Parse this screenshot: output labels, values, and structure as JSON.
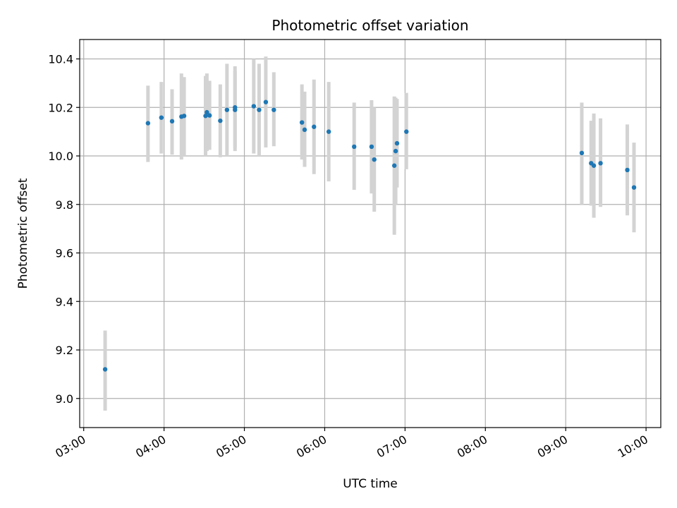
{
  "chart_data": {
    "type": "scatter",
    "title": "Photometric offset variation",
    "xlabel": "UTC time",
    "ylabel": "Photometric offset",
    "xlim": [
      "02:57",
      "10:11"
    ],
    "ylim": [
      8.88,
      10.48
    ],
    "xticks": [
      "03:00",
      "04:00",
      "05:00",
      "06:00",
      "07:00",
      "08:00",
      "09:00",
      "10:00"
    ],
    "yticks": [
      "9.0",
      "9.2",
      "9.4",
      "9.6",
      "9.8",
      "10.0",
      "10.2",
      "10.4"
    ],
    "grid": true,
    "colors": {
      "point": "#1f77b4",
      "errorbar": "#d3d3d3"
    },
    "points": [
      {
        "t": "03:16",
        "y": 9.12,
        "lo": 8.95,
        "hi": 9.28
      },
      {
        "t": "03:48",
        "y": 10.135,
        "lo": 9.975,
        "hi": 10.29
      },
      {
        "t": "03:58",
        "y": 10.158,
        "lo": 10.01,
        "hi": 10.305
      },
      {
        "t": "04:06",
        "y": 10.143,
        "lo": 10.005,
        "hi": 10.275
      },
      {
        "t": "04:13",
        "y": 10.162,
        "lo": 9.985,
        "hi": 10.34
      },
      {
        "t": "04:15",
        "y": 10.165,
        "lo": 10.0,
        "hi": 10.325
      },
      {
        "t": "04:31",
        "y": 10.165,
        "lo": 10.0,
        "hi": 10.33
      },
      {
        "t": "04:32",
        "y": 10.18,
        "lo": 10.02,
        "hi": 10.34
      },
      {
        "t": "04:34",
        "y": 10.167,
        "lo": 10.025,
        "hi": 10.31
      },
      {
        "t": "04:42",
        "y": 10.145,
        "lo": 9.995,
        "hi": 10.295
      },
      {
        "t": "04:47",
        "y": 10.19,
        "lo": 10.0,
        "hi": 10.38
      },
      {
        "t": "04:53",
        "y": 10.2,
        "lo": 10.02,
        "hi": 10.37
      },
      {
        "t": "04:53",
        "y": 10.19,
        "lo": 10.035,
        "hi": 10.35
      },
      {
        "t": "05:07",
        "y": 10.205,
        "lo": 10.01,
        "hi": 10.4
      },
      {
        "t": "05:11",
        "y": 10.19,
        "lo": 10.0,
        "hi": 10.38
      },
      {
        "t": "05:16",
        "y": 10.222,
        "lo": 10.035,
        "hi": 10.41
      },
      {
        "t": "05:22",
        "y": 10.19,
        "lo": 10.04,
        "hi": 10.345
      },
      {
        "t": "05:43",
        "y": 10.138,
        "lo": 9.985,
        "hi": 10.295
      },
      {
        "t": "05:45",
        "y": 10.108,
        "lo": 9.955,
        "hi": 10.265
      },
      {
        "t": "05:52",
        "y": 10.12,
        "lo": 9.925,
        "hi": 10.315
      },
      {
        "t": "06:03",
        "y": 10.1,
        "lo": 9.895,
        "hi": 10.305
      },
      {
        "t": "06:22",
        "y": 10.038,
        "lo": 9.86,
        "hi": 10.22
      },
      {
        "t": "06:35",
        "y": 10.038,
        "lo": 9.845,
        "hi": 10.23
      },
      {
        "t": "06:37",
        "y": 9.985,
        "lo": 9.77,
        "hi": 10.2
      },
      {
        "t": "06:52",
        "y": 9.96,
        "lo": 9.675,
        "hi": 10.245
      },
      {
        "t": "06:53",
        "y": 10.02,
        "lo": 9.8,
        "hi": 10.24
      },
      {
        "t": "06:54",
        "y": 10.052,
        "lo": 9.87,
        "hi": 10.235
      },
      {
        "t": "07:01",
        "y": 10.1,
        "lo": 9.945,
        "hi": 10.26
      },
      {
        "t": "09:12",
        "y": 10.012,
        "lo": 9.8,
        "hi": 10.22
      },
      {
        "t": "09:19",
        "y": 9.97,
        "lo": 9.795,
        "hi": 10.145
      },
      {
        "t": "09:21",
        "y": 9.96,
        "lo": 9.745,
        "hi": 10.175
      },
      {
        "t": "09:26",
        "y": 9.97,
        "lo": 9.79,
        "hi": 10.155
      },
      {
        "t": "09:46",
        "y": 9.942,
        "lo": 9.755,
        "hi": 10.13
      },
      {
        "t": "09:51",
        "y": 9.87,
        "lo": 9.685,
        "hi": 10.055
      }
    ]
  }
}
